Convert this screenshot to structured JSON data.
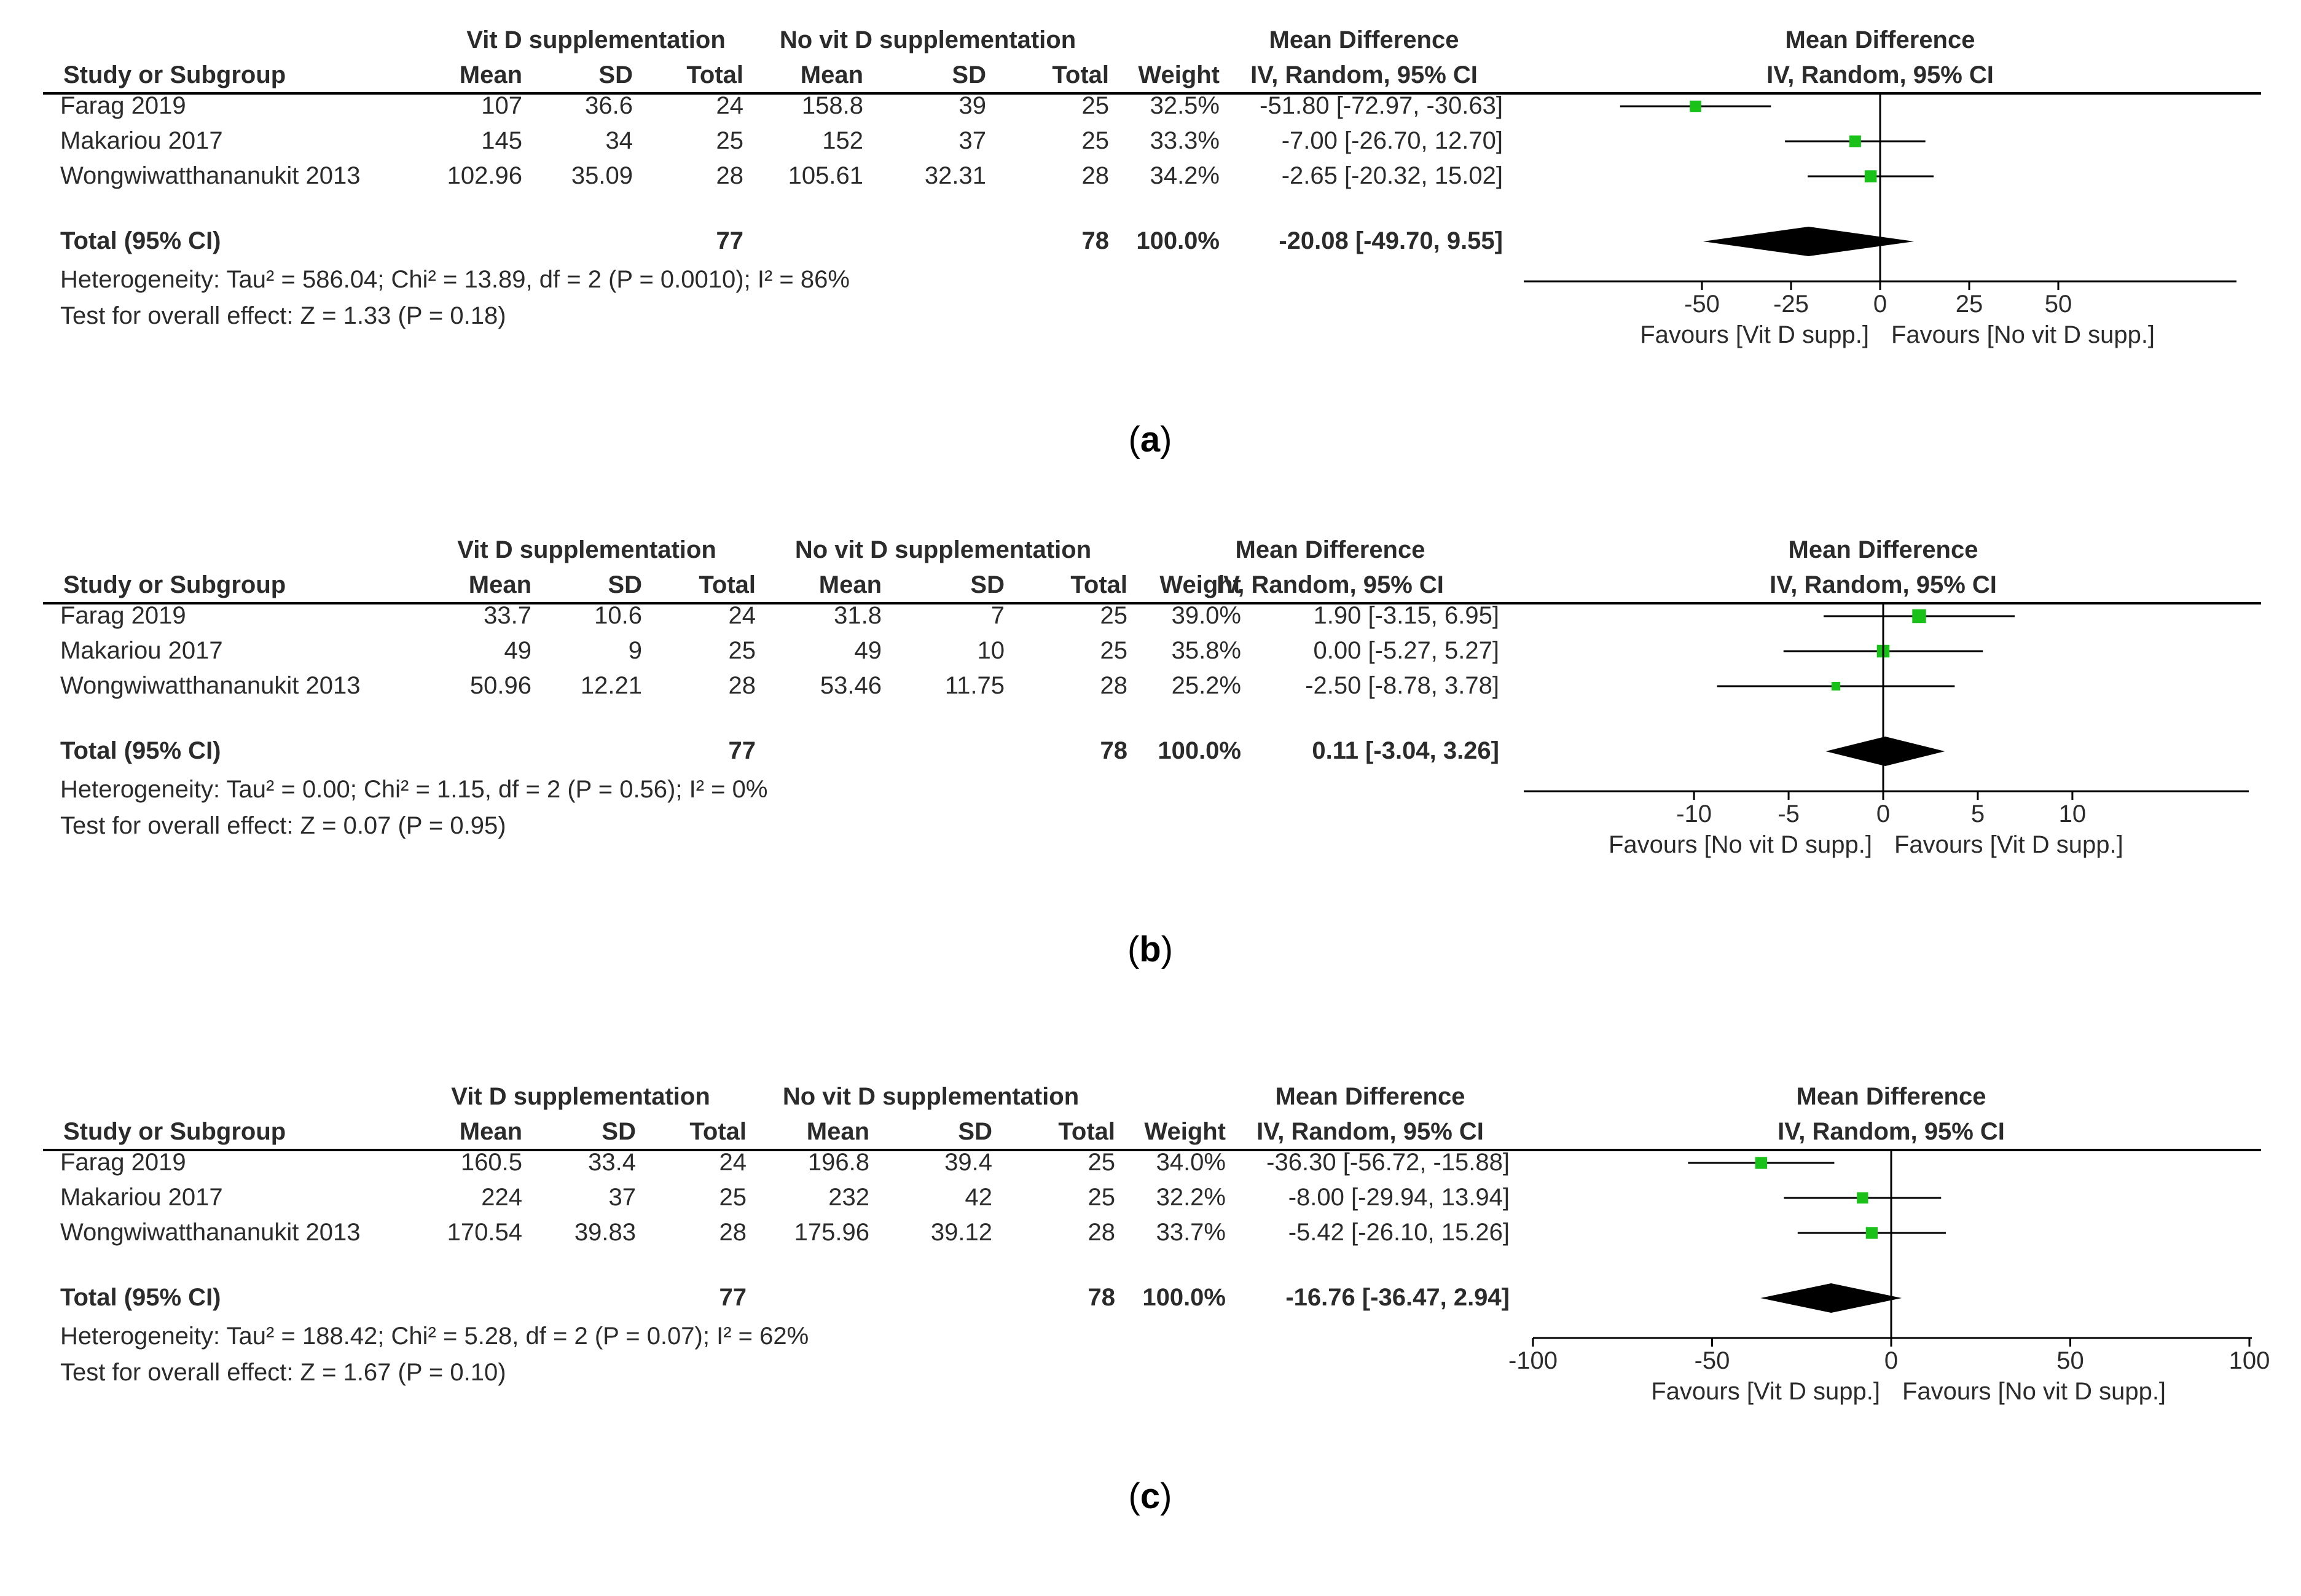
{
  "colors": {
    "text": "#2b2b2b",
    "line": "#000000",
    "square": "#19c119",
    "diamond": "#000000"
  },
  "chart_data": [
    {
      "type": "forest",
      "panel_label": "a",
      "headers": {
        "study": "Study or Subgroup",
        "group1": "Vit D supplementation",
        "group2": "No vit D supplementation",
        "mean": "Mean",
        "sd": "SD",
        "total": "Total",
        "weight": "Weight",
        "md_title": "Mean Difference",
        "md_method": "IV, Random, 95% CI",
        "plot_title": "Mean Difference",
        "plot_method": "IV, Random, 95% CI"
      },
      "studies": [
        {
          "name": "Farag 2019",
          "mean1": "107",
          "sd1": "36.6",
          "n1": "24",
          "mean2": "158.8",
          "sd2": "39",
          "n2": "25",
          "weight": "32.5%",
          "ci_text": "-51.80 [-72.97, -30.63]",
          "md": -51.8,
          "lo": -72.97,
          "hi": -30.63,
          "w": 32.5
        },
        {
          "name": "Makariou 2017",
          "mean1": "145",
          "sd1": "34",
          "n1": "25",
          "mean2": "152",
          "sd2": "37",
          "n2": "25",
          "weight": "33.3%",
          "ci_text": "-7.00 [-26.70, 12.70]",
          "md": -7.0,
          "lo": -26.7,
          "hi": 12.7,
          "w": 33.3
        },
        {
          "name": "Wongwiwatthananukit 2013",
          "mean1": "102.96",
          "sd1": "35.09",
          "n1": "28",
          "mean2": "105.61",
          "sd2": "32.31",
          "n2": "28",
          "weight": "34.2%",
          "ci_text": "-2.65 [-20.32, 15.02]",
          "md": -2.65,
          "lo": -20.32,
          "hi": 15.02,
          "w": 34.2
        }
      ],
      "total": {
        "label": "Total (95% CI)",
        "n1": "77",
        "n2": "78",
        "weight": "100.0%",
        "ci_text": "-20.08 [-49.70, 9.55]",
        "md": -20.08,
        "lo": -49.7,
        "hi": 9.55
      },
      "heterogeneity": "Heterogeneity: Tau² = 586.04; Chi² = 13.89, df = 2 (P = 0.0010); I² = 86%",
      "overall_effect": "Test for overall effect: Z = 1.33 (P = 0.18)",
      "xlim": [
        -100,
        100
      ],
      "ticks": [
        -50,
        -25,
        0,
        25,
        50
      ],
      "tick_labels": [
        "-50",
        "-25",
        "0",
        "25",
        "50"
      ],
      "favours_left": "Favours [Vit D supp.]",
      "favours_right": "Favours [No vit D supp.]"
    },
    {
      "type": "forest",
      "panel_label": "b",
      "headers": {
        "study": "Study or Subgroup",
        "group1": "Vit D supplementation",
        "group2": "No vit D supplementation",
        "mean": "Mean",
        "sd": "SD",
        "total": "Total",
        "weight": "Weight",
        "md_title": "Mean Difference",
        "md_method": "IV, Random, 95% CI",
        "plot_title": "Mean Difference",
        "plot_method": "IV, Random, 95% CI"
      },
      "studies": [
        {
          "name": "Farag 2019",
          "mean1": "33.7",
          "sd1": "10.6",
          "n1": "24",
          "mean2": "31.8",
          "sd2": "7",
          "n2": "25",
          "weight": "39.0%",
          "ci_text": "1.90 [-3.15, 6.95]",
          "md": 1.9,
          "lo": -3.15,
          "hi": 6.95,
          "w": 39.0
        },
        {
          "name": "Makariou 2017",
          "mean1": "49",
          "sd1": "9",
          "n1": "25",
          "mean2": "49",
          "sd2": "10",
          "n2": "25",
          "weight": "35.8%",
          "ci_text": "0.00 [-5.27, 5.27]",
          "md": 0.0,
          "lo": -5.27,
          "hi": 5.27,
          "w": 35.8
        },
        {
          "name": "Wongwiwatthananukit 2013",
          "mean1": "50.96",
          "sd1": "12.21",
          "n1": "28",
          "mean2": "53.46",
          "sd2": "11.75",
          "n2": "28",
          "weight": "25.2%",
          "ci_text": "-2.50 [-8.78, 3.78]",
          "md": -2.5,
          "lo": -8.78,
          "hi": 3.78,
          "w": 25.2
        }
      ],
      "total": {
        "label": "Total (95% CI)",
        "n1": "77",
        "n2": "78",
        "weight": "100.0%",
        "ci_text": "0.11 [-3.04, 3.26]",
        "md": 0.11,
        "lo": -3.04,
        "hi": 3.26
      },
      "heterogeneity": "Heterogeneity: Tau² = 0.00; Chi² = 1.15, df = 2 (P = 0.56); I² = 0%",
      "overall_effect": "Test for overall effect: Z = 0.07 (P = 0.95)",
      "xlim": [
        -19,
        19
      ],
      "ticks": [
        -10,
        -5,
        0,
        5,
        10
      ],
      "tick_labels": [
        "-10",
        "-5",
        "0",
        "5",
        "10"
      ],
      "favours_left": "Favours [No vit D supp.]",
      "favours_right": "Favours [Vit D supp.]"
    },
    {
      "type": "forest",
      "panel_label": "c",
      "headers": {
        "study": "Study or Subgroup",
        "group1": "Vit D supplementation",
        "group2": "No vit D supplementation",
        "mean": "Mean",
        "sd": "SD",
        "total": "Total",
        "weight": "Weight",
        "md_title": "Mean Difference",
        "md_method": "IV, Random, 95% CI",
        "plot_title": "Mean Difference",
        "plot_method": "IV, Random, 95% CI"
      },
      "studies": [
        {
          "name": "Farag 2019",
          "mean1": "160.5",
          "sd1": "33.4",
          "n1": "24",
          "mean2": "196.8",
          "sd2": "39.4",
          "n2": "25",
          "weight": "34.0%",
          "ci_text": "-36.30 [-56.72, -15.88]",
          "md": -36.3,
          "lo": -56.72,
          "hi": -15.88,
          "w": 34.0
        },
        {
          "name": "Makariou 2017",
          "mean1": "224",
          "sd1": "37",
          "n1": "25",
          "mean2": "232",
          "sd2": "42",
          "n2": "25",
          "weight": "32.2%",
          "ci_text": "-8.00 [-29.94, 13.94]",
          "md": -8.0,
          "lo": -29.94,
          "hi": 13.94,
          "w": 32.2
        },
        {
          "name": "Wongwiwatthananukit 2013",
          "mean1": "170.54",
          "sd1": "39.83",
          "n1": "28",
          "mean2": "175.96",
          "sd2": "39.12",
          "n2": "28",
          "weight": "33.7%",
          "ci_text": "-5.42 [-26.10, 15.26]",
          "md": -5.42,
          "lo": -26.1,
          "hi": 15.26,
          "w": 33.7
        }
      ],
      "total": {
        "label": "Total (95% CI)",
        "n1": "77",
        "n2": "78",
        "weight": "100.0%",
        "ci_text": "-16.76 [-36.47, 2.94]",
        "md": -16.76,
        "lo": -36.47,
        "hi": 2.94
      },
      "heterogeneity": "Heterogeneity: Tau² = 188.42; Chi² = 5.28, df = 2 (P = 0.07); I² = 62%",
      "overall_effect": "Test for overall effect: Z = 1.67 (P = 0.10)",
      "xlim": [
        -100,
        100
      ],
      "ticks": [
        -100,
        -50,
        0,
        50,
        100
      ],
      "tick_labels": [
        "-100",
        "-50",
        "0",
        "50",
        "100"
      ],
      "favours_left": "Favours [Vit D supp.]",
      "favours_right": "Favours [No vit D supp.]"
    }
  ]
}
